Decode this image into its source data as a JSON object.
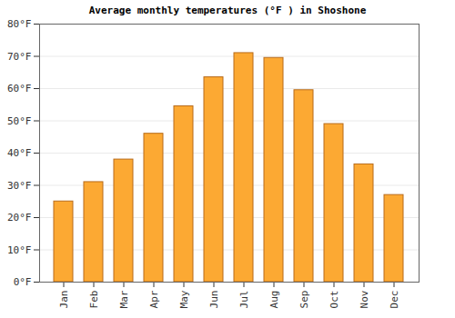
{
  "chart_data": {
    "type": "bar",
    "title": "Average monthly temperatures (°F ) in Shoshone",
    "categories": [
      "Jan",
      "Feb",
      "Mar",
      "Apr",
      "May",
      "Jun",
      "Jul",
      "Aug",
      "Sep",
      "Oct",
      "Nov",
      "Dec"
    ],
    "values": [
      25,
      31,
      38,
      46,
      54.5,
      63.5,
      71,
      69.5,
      59.5,
      49,
      36.5,
      27
    ],
    "color": "#fca933",
    "ylim": [
      0,
      80
    ],
    "yticks": [
      {
        "value": 0,
        "label": "0°F"
      },
      {
        "value": 10,
        "label": "10°F"
      },
      {
        "value": 20,
        "label": "20°F"
      },
      {
        "value": 30,
        "label": "30°F"
      },
      {
        "value": 40,
        "label": "40°F"
      },
      {
        "value": 50,
        "label": "50°F"
      },
      {
        "value": 60,
        "label": "60°F"
      },
      {
        "value": 70,
        "label": "70°F"
      },
      {
        "value": 80,
        "label": "80°F"
      }
    ],
    "grid": true
  }
}
